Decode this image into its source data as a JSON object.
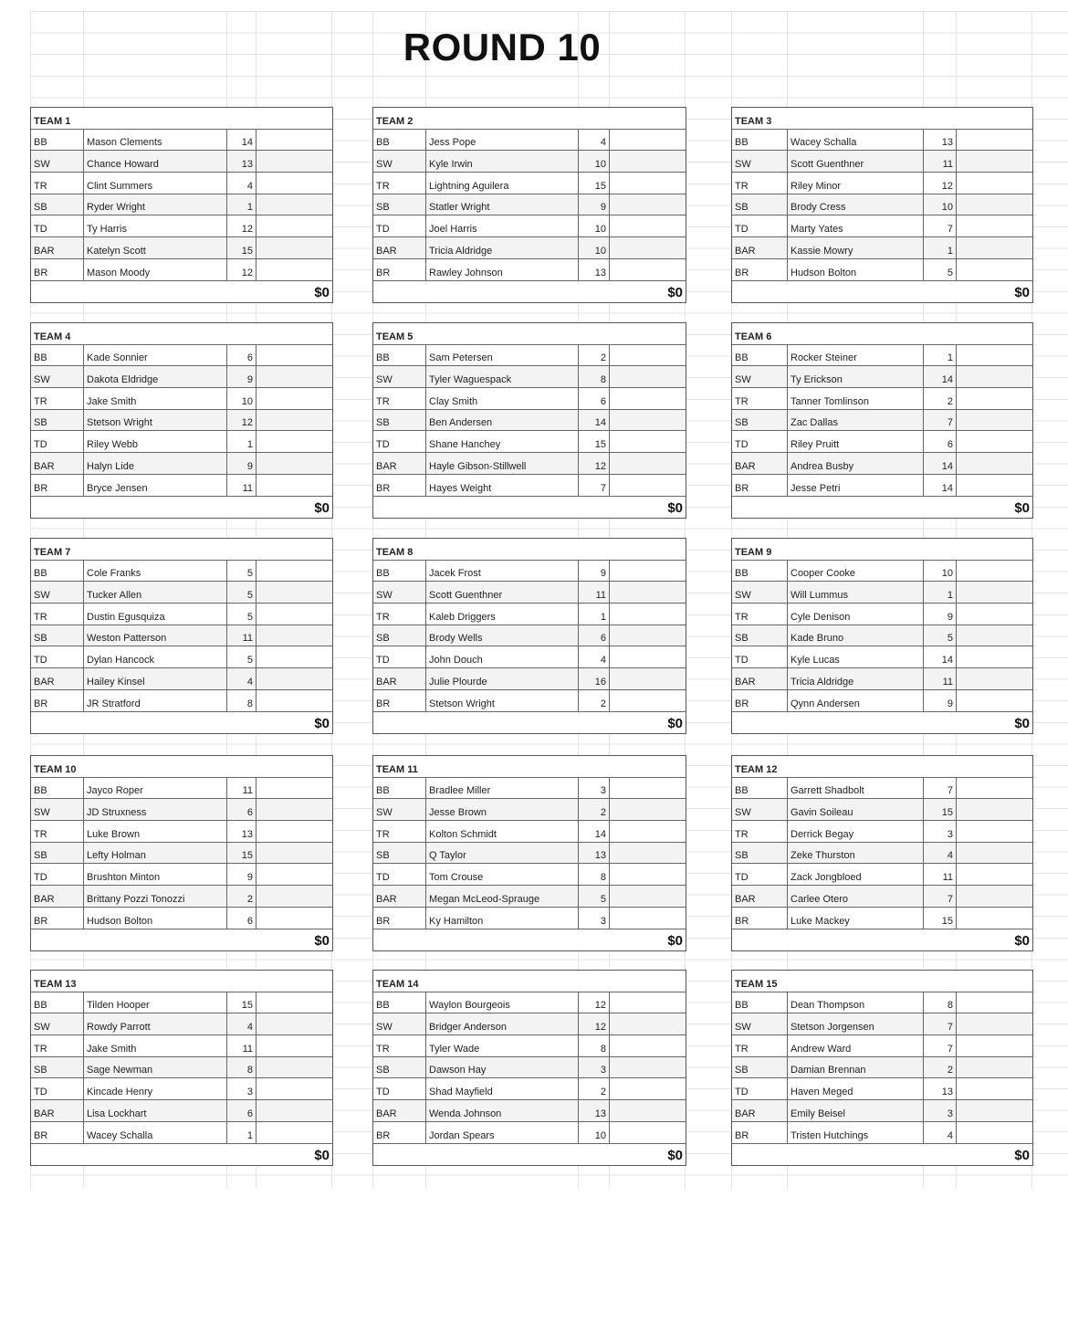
{
  "title": "ROUND 10",
  "teams": [
    {
      "name": "TEAM 1",
      "total": "$0",
      "players": [
        [
          "BB",
          "Mason Clements",
          "14"
        ],
        [
          "SW",
          "Chance Howard",
          "13"
        ],
        [
          "TR",
          "Clint Summers",
          "4"
        ],
        [
          "SB",
          "Ryder Wright",
          "1"
        ],
        [
          "TD",
          "Ty Harris",
          "12"
        ],
        [
          "BAR",
          "Katelyn Scott",
          "15"
        ],
        [
          "BR",
          "Mason Moody",
          "12"
        ]
      ]
    },
    {
      "name": "TEAM 2",
      "total": "$0",
      "players": [
        [
          "BB",
          "Jess Pope",
          "4"
        ],
        [
          "SW",
          "Kyle Irwin",
          "10"
        ],
        [
          "TR",
          "Lightning Aguilera",
          "15"
        ],
        [
          "SB",
          "Statler Wright",
          "9"
        ],
        [
          "TD",
          "Joel Harris",
          "10"
        ],
        [
          "BAR",
          "Tricia Aldridge",
          "10"
        ],
        [
          "BR",
          "Rawley Johnson",
          "13"
        ]
      ]
    },
    {
      "name": "TEAM 3",
      "total": "$0",
      "players": [
        [
          "BB",
          "Wacey Schalla",
          "13"
        ],
        [
          "SW",
          "Scott Guenthner",
          "11"
        ],
        [
          "TR",
          "Riley Minor",
          "12"
        ],
        [
          "SB",
          "Brody Cress",
          "10"
        ],
        [
          "TD",
          "Marty Yates",
          "7"
        ],
        [
          "BAR",
          "Kassie Mowry",
          "1"
        ],
        [
          "BR",
          "Hudson Bolton",
          "5"
        ]
      ]
    },
    {
      "name": "TEAM 4",
      "total": "$0",
      "players": [
        [
          "BB",
          "Kade Sonnier",
          "6"
        ],
        [
          "SW",
          "Dakota Eldridge",
          "9"
        ],
        [
          "TR",
          "Jake Smith",
          "10"
        ],
        [
          "SB",
          "Stetson Wright",
          "12"
        ],
        [
          "TD",
          "Riley Webb",
          "1"
        ],
        [
          "BAR",
          "Halyn Lide",
          "9"
        ],
        [
          "BR",
          "Bryce Jensen",
          "11"
        ]
      ]
    },
    {
      "name": "TEAM 5",
      "total": "$0",
      "players": [
        [
          "BB",
          "Sam Petersen",
          "2"
        ],
        [
          "SW",
          "Tyler Waguespack",
          "8"
        ],
        [
          "TR",
          "Clay Smith",
          "6"
        ],
        [
          "SB",
          "Ben Andersen",
          "14"
        ],
        [
          "TD",
          "Shane Hanchey",
          "15"
        ],
        [
          "BAR",
          "Hayle Gibson-Stillwell",
          "12"
        ],
        [
          "BR",
          "Hayes Weight",
          "7"
        ]
      ]
    },
    {
      "name": "TEAM 6",
      "total": "$0",
      "players": [
        [
          "BB",
          "Rocker Steiner",
          "1"
        ],
        [
          "SW",
          "Ty Erickson",
          "14"
        ],
        [
          "TR",
          "Tanner Tomlinson",
          "2"
        ],
        [
          "SB",
          "Zac Dallas",
          "7"
        ],
        [
          "TD",
          "Riley Pruitt",
          "6"
        ],
        [
          "BAR",
          "Andrea Busby",
          "14"
        ],
        [
          "BR",
          "Jesse Petri",
          "14"
        ]
      ]
    },
    {
      "name": "TEAM 7",
      "total": "$0",
      "players": [
        [
          "BB",
          "Cole Franks",
          "5"
        ],
        [
          "SW",
          "Tucker Allen",
          "5"
        ],
        [
          "TR",
          "Dustin Egusquiza",
          "5"
        ],
        [
          "SB",
          "Weston Patterson",
          "11"
        ],
        [
          "TD",
          "Dylan Hancock",
          "5"
        ],
        [
          "BAR",
          "Hailey Kinsel",
          "4"
        ],
        [
          "BR",
          "JR Stratford",
          "8"
        ]
      ]
    },
    {
      "name": "TEAM 8",
      "total": "$0",
      "players": [
        [
          "BB",
          "Jacek Frost",
          "9"
        ],
        [
          "SW",
          "Scott Guenthner",
          "11"
        ],
        [
          "TR",
          "Kaleb Driggers",
          "1"
        ],
        [
          "SB",
          "Brody Wells",
          "6"
        ],
        [
          "TD",
          "John Douch",
          "4"
        ],
        [
          "BAR",
          "Julie Plourde",
          "16"
        ],
        [
          "BR",
          "Stetson Wright",
          "2"
        ]
      ]
    },
    {
      "name": "TEAM 9",
      "total": "$0",
      "players": [
        [
          "BB",
          "Cooper Cooke",
          "10"
        ],
        [
          "SW",
          "Will Lummus",
          "1"
        ],
        [
          "TR",
          "Cyle Denison",
          "9"
        ],
        [
          "SB",
          "Kade Bruno",
          "5"
        ],
        [
          "TD",
          "Kyle Lucas",
          "14"
        ],
        [
          "BAR",
          "Tricia Aldridge",
          "11"
        ],
        [
          "BR",
          "Qynn Andersen",
          "9"
        ]
      ]
    },
    {
      "name": "TEAM 10",
      "total": "$0",
      "players": [
        [
          "BB",
          "Jayco Roper",
          "11"
        ],
        [
          "SW",
          "JD Struxness",
          "6"
        ],
        [
          "TR",
          "Luke Brown",
          "13"
        ],
        [
          "SB",
          "Lefty Holman",
          "15"
        ],
        [
          "TD",
          "Brushton Minton",
          "9"
        ],
        [
          "BAR",
          "Brittany Pozzi Tonozzi",
          "2"
        ],
        [
          "BR",
          "Hudson Bolton",
          "6"
        ]
      ]
    },
    {
      "name": "TEAM 11",
      "total": "$0",
      "players": [
        [
          "BB",
          "Bradlee Miller",
          "3"
        ],
        [
          "SW",
          "Jesse Brown",
          "2"
        ],
        [
          "TR",
          "Kolton Schmidt",
          "14"
        ],
        [
          "SB",
          "Q Taylor",
          "13"
        ],
        [
          "TD",
          "Tom Crouse",
          "8"
        ],
        [
          "BAR",
          "Megan McLeod-Sprauge",
          "5"
        ],
        [
          "BR",
          "Ky Hamilton",
          "3"
        ]
      ]
    },
    {
      "name": "TEAM 12",
      "total": "$0",
      "players": [
        [
          "BB",
          "Garrett Shadbolt",
          "7"
        ],
        [
          "SW",
          "Gavin Soileau",
          "15"
        ],
        [
          "TR",
          "Derrick Begay",
          "3"
        ],
        [
          "SB",
          "Zeke Thurston",
          "4"
        ],
        [
          "TD",
          "Zack Jongbloed",
          "11"
        ],
        [
          "BAR",
          "Carlee Otero",
          "7"
        ],
        [
          "BR",
          "Luke Mackey",
          "15"
        ]
      ]
    },
    {
      "name": "TEAM 13",
      "total": "$0",
      "players": [
        [
          "BB",
          "Tilden Hooper",
          "15"
        ],
        [
          "SW",
          "Rowdy Parrott",
          "4"
        ],
        [
          "TR",
          "Jake Smith",
          "11"
        ],
        [
          "SB",
          "Sage Newman",
          "8"
        ],
        [
          "TD",
          "Kincade Henry",
          "3"
        ],
        [
          "BAR",
          "Lisa Lockhart",
          "6"
        ],
        [
          "BR",
          "Wacey Schalla",
          "1"
        ]
      ]
    },
    {
      "name": "TEAM 14",
      "total": "$0",
      "players": [
        [
          "BB",
          "Waylon Bourgeois",
          "12"
        ],
        [
          "SW",
          "Bridger Anderson",
          "12"
        ],
        [
          "TR",
          "Tyler Wade",
          "8"
        ],
        [
          "SB",
          "Dawson Hay",
          "3"
        ],
        [
          "TD",
          "Shad Mayfield",
          "2"
        ],
        [
          "BAR",
          "Wenda Johnson",
          "13"
        ],
        [
          "BR",
          "Jordan Spears",
          "10"
        ]
      ]
    },
    {
      "name": "TEAM 15",
      "total": "$0",
      "players": [
        [
          "BB",
          "Dean Thompson",
          "8"
        ],
        [
          "SW",
          "Stetson Jorgensen",
          "7"
        ],
        [
          "TR",
          "Andrew Ward",
          "7"
        ],
        [
          "SB",
          "Damian Brennan",
          "2"
        ],
        [
          "TD",
          "Haven Meged",
          "13"
        ],
        [
          "BAR",
          "Emily Beisel",
          "3"
        ],
        [
          "BR",
          "Tristen Hutchings",
          "4"
        ]
      ]
    }
  ]
}
